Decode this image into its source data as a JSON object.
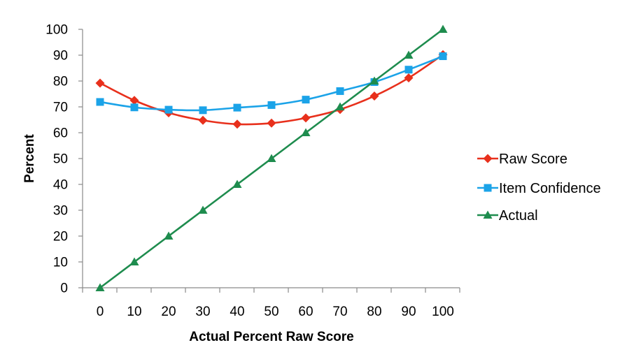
{
  "chart_data": {
    "type": "line",
    "xlabel": "Actual Percent Raw Score",
    "ylabel": "Percent",
    "x": [
      0,
      10,
      20,
      30,
      40,
      50,
      60,
      70,
      80,
      90,
      100
    ],
    "xlim": [
      0,
      100
    ],
    "ylim": [
      0,
      100
    ],
    "x_ticks": [
      "0",
      "10",
      "20",
      "30",
      "40",
      "50",
      "60",
      "70",
      "80",
      "90",
      "100"
    ],
    "y_ticks": [
      "0",
      "10",
      "20",
      "30",
      "40",
      "50",
      "60",
      "70",
      "80",
      "90",
      "100"
    ],
    "grid": false,
    "legend_position": "right",
    "series": [
      {
        "name": "Raw Score",
        "color": "#e8301c",
        "marker": "diamond",
        "values": [
          79.2,
          72.5,
          67.7,
          64.8,
          63.3,
          63.7,
          65.7,
          69.0,
          74.2,
          81.2,
          90.2
        ]
      },
      {
        "name": "Item Confidence",
        "color": "#1ba3e8",
        "marker": "square",
        "values": [
          71.9,
          69.8,
          68.9,
          68.7,
          69.7,
          70.7,
          72.8,
          76.1,
          79.6,
          84.4,
          89.6
        ]
      },
      {
        "name": "Actual",
        "color": "#1e8c4e",
        "marker": "triangle",
        "values": [
          0,
          10,
          20,
          30,
          40,
          50,
          60,
          70,
          80,
          90,
          100
        ]
      }
    ]
  }
}
